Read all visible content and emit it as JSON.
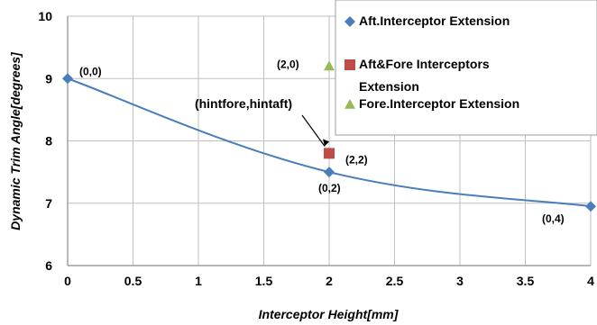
{
  "chart_data": {
    "type": "line",
    "title": "",
    "xlabel": "Interceptor Height[mm]",
    "ylabel": "Dynamic Trim Angle[degrees]",
    "xlim": [
      0,
      4
    ],
    "ylim": [
      6,
      10
    ],
    "xticks": [
      "0",
      "0.5",
      "1",
      "1.5",
      "2",
      "2.5",
      "3",
      "3.5",
      "4"
    ],
    "yticks": [
      "6",
      "7",
      "8",
      "9",
      "10"
    ],
    "grid": true,
    "legend_position": "top-right",
    "series": [
      {
        "name": "Aft.Interceptor Extension",
        "marker": "diamond",
        "color": "#4a7ebb",
        "line": "smooth",
        "points": [
          {
            "x": 0,
            "y": 9.0,
            "label": "(0,0)"
          },
          {
            "x": 2,
            "y": 7.5,
            "label": "(0,2)"
          },
          {
            "x": 4,
            "y": 6.95,
            "label": "(0,4)"
          }
        ]
      },
      {
        "name": "Aft&Fore Interceptors Extension",
        "marker": "square",
        "color": "#be4b48",
        "line": "none",
        "points": [
          {
            "x": 2,
            "y": 7.8,
            "label": "(2,2)"
          }
        ]
      },
      {
        "name": "Fore.Interceptor Extension",
        "marker": "triangle",
        "color": "#98b954",
        "line": "none",
        "points": [
          {
            "x": 2,
            "y": 9.2,
            "label": "(2,0)"
          }
        ]
      }
    ],
    "annotations": [
      {
        "text": "(hintfore,hintaft)",
        "points_to": {
          "x": 2,
          "y": 7.8
        }
      }
    ],
    "legend": {
      "entries": [
        {
          "lines": [
            "Aft.Interceptor Extension"
          ]
        },
        {
          "lines": [
            "Aft&Fore Interceptors",
            "Extension"
          ]
        },
        {
          "lines": [
            "Fore.Interceptor Extension"
          ]
        }
      ]
    }
  }
}
